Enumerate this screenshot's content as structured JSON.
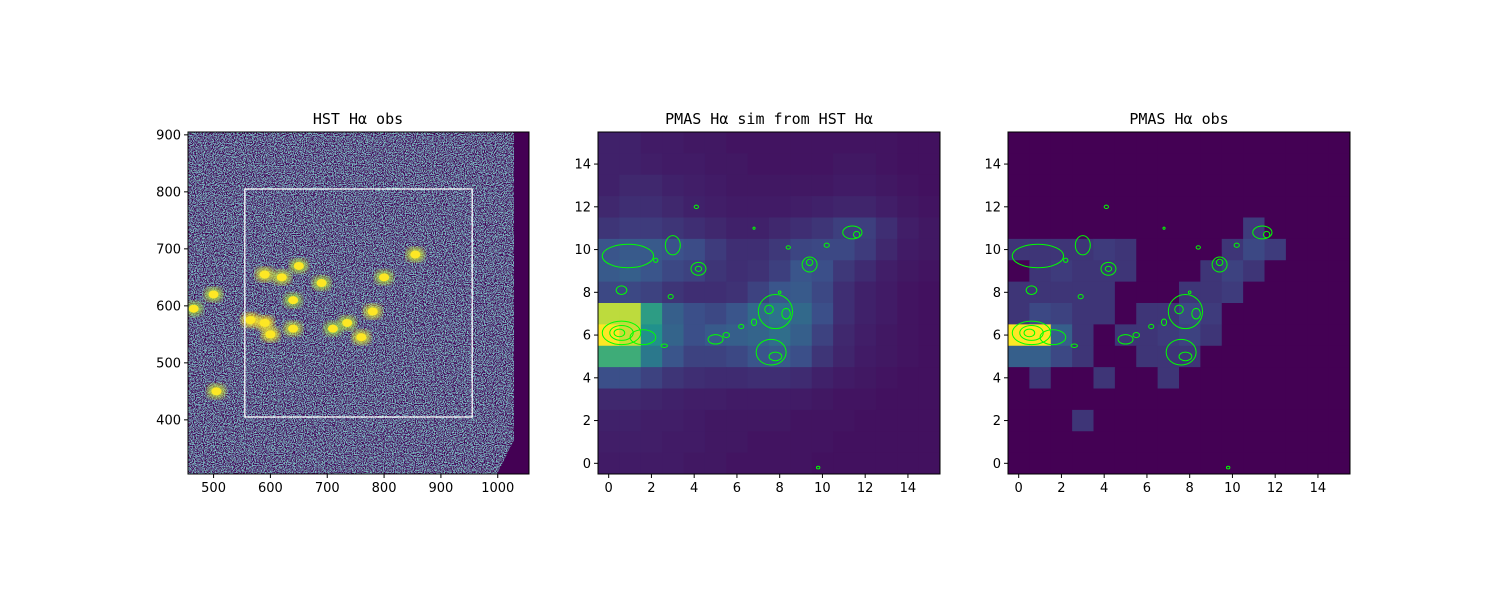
{
  "colors": {
    "viridis_low": "#440154",
    "viridis_mid": "#31688e",
    "viridis_green": "#35b779",
    "viridis_high": "#fde725",
    "contour": "#00ff00",
    "box": "#ffffff"
  },
  "chart_data": [
    {
      "type": "heatmap",
      "title": "HST Hα obs",
      "xlim": [
        455,
        1055
      ],
      "ylim": [
        305,
        905
      ],
      "xticks": [
        500,
        600,
        700,
        800,
        900,
        1000
      ],
      "yticks": [
        400,
        500,
        600,
        700,
        800,
        900
      ],
      "colormap": "viridis",
      "overlay_rectangle": {
        "x": [
          555,
          955
        ],
        "y": [
          405,
          805
        ]
      },
      "bright_regions": [
        {
          "x": 590,
          "y": 570,
          "v": 1.0
        },
        {
          "x": 565,
          "y": 575,
          "v": 1.0
        },
        {
          "x": 600,
          "y": 550,
          "v": 0.9
        },
        {
          "x": 640,
          "y": 560,
          "v": 0.7
        },
        {
          "x": 590,
          "y": 655,
          "v": 0.8
        },
        {
          "x": 620,
          "y": 650,
          "v": 0.7
        },
        {
          "x": 650,
          "y": 670,
          "v": 0.6
        },
        {
          "x": 690,
          "y": 640,
          "v": 0.6
        },
        {
          "x": 640,
          "y": 610,
          "v": 0.5
        },
        {
          "x": 500,
          "y": 620,
          "v": 0.6
        },
        {
          "x": 465,
          "y": 595,
          "v": 0.5
        },
        {
          "x": 505,
          "y": 450,
          "v": 0.7
        },
        {
          "x": 760,
          "y": 545,
          "v": 0.8
        },
        {
          "x": 735,
          "y": 570,
          "v": 0.6
        },
        {
          "x": 780,
          "y": 590,
          "v": 0.8
        },
        {
          "x": 800,
          "y": 650,
          "v": 0.6
        },
        {
          "x": 855,
          "y": 690,
          "v": 0.7
        },
        {
          "x": 710,
          "y": 560,
          "v": 0.5
        }
      ]
    },
    {
      "type": "heatmap",
      "title": "PMAS Hα sim from HST Hα",
      "xlim": [
        -0.5,
        15.5
      ],
      "ylim": [
        -0.5,
        15.5
      ],
      "xticks": [
        0,
        2,
        4,
        6,
        8,
        10,
        12,
        14
      ],
      "yticks": [
        0,
        2,
        4,
        6,
        8,
        10,
        12,
        14
      ],
      "colormap": "viridis",
      "grid_rows_top_to_bottom": [
        [
          0.1,
          0.1,
          0.08,
          0.08,
          0.07,
          0.07,
          0.06,
          0.06,
          0.06,
          0.06,
          0.06,
          0.06,
          0.06,
          0.06,
          0.05,
          0.05
        ],
        [
          0.1,
          0.1,
          0.09,
          0.08,
          0.08,
          0.07,
          0.07,
          0.06,
          0.06,
          0.06,
          0.06,
          0.07,
          0.07,
          0.06,
          0.05,
          0.05
        ],
        [
          0.1,
          0.12,
          0.12,
          0.1,
          0.09,
          0.08,
          0.07,
          0.07,
          0.07,
          0.07,
          0.07,
          0.08,
          0.08,
          0.07,
          0.06,
          0.05
        ],
        [
          0.12,
          0.14,
          0.14,
          0.12,
          0.1,
          0.09,
          0.08,
          0.08,
          0.08,
          0.09,
          0.1,
          0.11,
          0.11,
          0.09,
          0.07,
          0.06
        ],
        [
          0.16,
          0.18,
          0.18,
          0.16,
          0.14,
          0.12,
          0.1,
          0.1,
          0.12,
          0.14,
          0.16,
          0.19,
          0.19,
          0.14,
          0.09,
          0.07
        ],
        [
          0.26,
          0.28,
          0.28,
          0.25,
          0.23,
          0.18,
          0.14,
          0.14,
          0.17,
          0.21,
          0.22,
          0.22,
          0.18,
          0.12,
          0.08,
          0.07
        ],
        [
          0.28,
          0.3,
          0.26,
          0.22,
          0.2,
          0.16,
          0.14,
          0.15,
          0.19,
          0.26,
          0.24,
          0.17,
          0.13,
          0.09,
          0.07,
          0.06
        ],
        [
          0.22,
          0.22,
          0.2,
          0.16,
          0.14,
          0.14,
          0.15,
          0.2,
          0.26,
          0.28,
          0.22,
          0.14,
          0.1,
          0.08,
          0.06,
          0.05
        ],
        [
          0.9,
          0.9,
          0.55,
          0.3,
          0.24,
          0.22,
          0.26,
          0.34,
          0.38,
          0.34,
          0.24,
          0.14,
          0.1,
          0.08,
          0.06,
          0.05
        ],
        [
          1.0,
          0.92,
          0.5,
          0.32,
          0.24,
          0.28,
          0.3,
          0.32,
          0.36,
          0.3,
          0.2,
          0.12,
          0.09,
          0.07,
          0.06,
          0.05
        ],
        [
          0.62,
          0.62,
          0.4,
          0.26,
          0.2,
          0.2,
          0.22,
          0.26,
          0.28,
          0.24,
          0.16,
          0.11,
          0.08,
          0.07,
          0.06,
          0.05
        ],
        [
          0.24,
          0.24,
          0.2,
          0.16,
          0.14,
          0.13,
          0.13,
          0.14,
          0.14,
          0.13,
          0.1,
          0.08,
          0.07,
          0.06,
          0.05,
          0.05
        ],
        [
          0.12,
          0.12,
          0.11,
          0.1,
          0.09,
          0.09,
          0.08,
          0.08,
          0.08,
          0.08,
          0.07,
          0.06,
          0.06,
          0.05,
          0.05,
          0.05
        ],
        [
          0.1,
          0.1,
          0.09,
          0.09,
          0.08,
          0.07,
          0.07,
          0.07,
          0.07,
          0.06,
          0.06,
          0.06,
          0.05,
          0.05,
          0.05,
          0.05
        ],
        [
          0.09,
          0.09,
          0.09,
          0.08,
          0.08,
          0.07,
          0.07,
          0.06,
          0.06,
          0.06,
          0.06,
          0.05,
          0.05,
          0.05,
          0.05,
          0.05
        ],
        [
          0.08,
          0.08,
          0.08,
          0.08,
          0.07,
          0.07,
          0.06,
          0.06,
          0.06,
          0.06,
          0.05,
          0.05,
          0.05,
          0.05,
          0.05,
          0.05
        ]
      ]
    },
    {
      "type": "heatmap",
      "title": "PMAS Hα obs",
      "xlim": [
        -0.5,
        15.5
      ],
      "ylim": [
        -0.5,
        15.5
      ],
      "xticks": [
        0,
        2,
        4,
        6,
        8,
        10,
        12,
        14
      ],
      "yticks": [
        0,
        2,
        4,
        6,
        8,
        10,
        12,
        14
      ],
      "colormap": "viridis",
      "grid_rows_top_to_bottom": [
        [
          0,
          0,
          0,
          0,
          0,
          0,
          0,
          0,
          0,
          0,
          0,
          0,
          0,
          0,
          0,
          0
        ],
        [
          0,
          0,
          0,
          0,
          0,
          0,
          0,
          0,
          0,
          0,
          0,
          0,
          0,
          0,
          0,
          0
        ],
        [
          0,
          0,
          0,
          0,
          0,
          0,
          0,
          0,
          0,
          0,
          0,
          0,
          0,
          0,
          0,
          0
        ],
        [
          0,
          0,
          0,
          0,
          0,
          0,
          0,
          0,
          0,
          0,
          0,
          0,
          0,
          0,
          0,
          0
        ],
        [
          0,
          0,
          0,
          0,
          0,
          0,
          0,
          0,
          0,
          0,
          0,
          0.18,
          0,
          0,
          0,
          0
        ],
        [
          0.16,
          0.16,
          0.16,
          0.16,
          0.18,
          0.16,
          0,
          0,
          0,
          0,
          0.16,
          0.22,
          0.18,
          0,
          0,
          0
        ],
        [
          0,
          0.16,
          0.18,
          0.16,
          0.16,
          0.16,
          0,
          0,
          0,
          0.16,
          0.2,
          0.16,
          0,
          0,
          0,
          0
        ],
        [
          0.16,
          0.16,
          0.16,
          0.16,
          0.16,
          0,
          0,
          0,
          0.16,
          0.16,
          0.18,
          0,
          0,
          0,
          0,
          0
        ],
        [
          0.16,
          0.22,
          0.2,
          0.16,
          0.16,
          0,
          0.16,
          0.16,
          0.22,
          0.18,
          0,
          0,
          0,
          0,
          0,
          0
        ],
        [
          1.0,
          1.0,
          0.3,
          0.16,
          0,
          0.16,
          0.16,
          0.18,
          0.2,
          0.16,
          0,
          0,
          0,
          0,
          0,
          0
        ],
        [
          0.3,
          0.3,
          0.22,
          0.16,
          0,
          0,
          0.16,
          0.16,
          0.16,
          0,
          0,
          0,
          0,
          0,
          0,
          0
        ],
        [
          0,
          0.16,
          0,
          0,
          0.16,
          0,
          0,
          0.16,
          0,
          0,
          0,
          0,
          0,
          0,
          0,
          0
        ],
        [
          0,
          0,
          0,
          0,
          0,
          0,
          0,
          0,
          0,
          0,
          0,
          0,
          0,
          0,
          0,
          0
        ],
        [
          0,
          0,
          0,
          0.16,
          0,
          0,
          0,
          0,
          0,
          0,
          0,
          0,
          0,
          0,
          0,
          0
        ],
        [
          0,
          0,
          0,
          0,
          0,
          0,
          0,
          0,
          0,
          0,
          0,
          0,
          0,
          0,
          0,
          0
        ],
        [
          0,
          0,
          0,
          0,
          0,
          0,
          0,
          0,
          0,
          0,
          0,
          0,
          0,
          0,
          0,
          0
        ]
      ]
    }
  ],
  "contours_pmas_coords": [
    {
      "type": "ring",
      "x": 0.6,
      "y": 6.1,
      "rx": 0.9,
      "ry": 0.55
    },
    {
      "type": "ring",
      "x": 0.6,
      "y": 6.1,
      "rx": 0.55,
      "ry": 0.35
    },
    {
      "type": "ring",
      "x": 0.5,
      "y": 6.1,
      "rx": 0.25,
      "ry": 0.18
    },
    {
      "type": "ring",
      "x": 1.6,
      "y": 5.9,
      "rx": 0.6,
      "ry": 0.35
    },
    {
      "type": "ring",
      "x": 0.9,
      "y": 9.7,
      "rx": 1.2,
      "ry": 0.55
    },
    {
      "type": "ring",
      "x": 0.6,
      "y": 8.1,
      "rx": 0.25,
      "ry": 0.2
    },
    {
      "type": "ring",
      "x": 2.2,
      "y": 9.5,
      "rx": 0.1,
      "ry": 0.1
    },
    {
      "type": "ring",
      "x": 3.0,
      "y": 10.2,
      "rx": 0.35,
      "ry": 0.45
    },
    {
      "type": "ring",
      "x": 4.2,
      "y": 9.1,
      "rx": 0.35,
      "ry": 0.3
    },
    {
      "type": "ring",
      "x": 4.2,
      "y": 9.1,
      "rx": 0.15,
      "ry": 0.12
    },
    {
      "type": "ring",
      "x": 4.1,
      "y": 12.0,
      "rx": 0.1,
      "ry": 0.08
    },
    {
      "type": "ring",
      "x": 2.9,
      "y": 7.8,
      "rx": 0.12,
      "ry": 0.1
    },
    {
      "type": "ring",
      "x": 2.6,
      "y": 5.5,
      "rx": 0.15,
      "ry": 0.08
    },
    {
      "type": "ring",
      "x": 5.0,
      "y": 5.8,
      "rx": 0.35,
      "ry": 0.22
    },
    {
      "type": "ring",
      "x": 5.5,
      "y": 6.0,
      "rx": 0.15,
      "ry": 0.12
    },
    {
      "type": "ring",
      "x": 6.2,
      "y": 6.4,
      "rx": 0.12,
      "ry": 0.1
    },
    {
      "type": "ring",
      "x": 6.8,
      "y": 6.6,
      "rx": 0.12,
      "ry": 0.15
    },
    {
      "type": "ring",
      "x": 7.8,
      "y": 7.1,
      "rx": 0.8,
      "ry": 0.8
    },
    {
      "type": "ring",
      "x": 7.5,
      "y": 7.2,
      "rx": 0.2,
      "ry": 0.2
    },
    {
      "type": "ring",
      "x": 8.3,
      "y": 7.0,
      "rx": 0.2,
      "ry": 0.25
    },
    {
      "type": "ring",
      "x": 7.6,
      "y": 5.2,
      "rx": 0.7,
      "ry": 0.6
    },
    {
      "type": "ring",
      "x": 7.8,
      "y": 5.0,
      "rx": 0.3,
      "ry": 0.2
    },
    {
      "type": "ring",
      "x": 8.0,
      "y": 8.0,
      "rx": 0.06,
      "ry": 0.06
    },
    {
      "type": "ring",
      "x": 8.4,
      "y": 10.1,
      "rx": 0.1,
      "ry": 0.08
    },
    {
      "type": "ring",
      "x": 9.4,
      "y": 9.3,
      "rx": 0.35,
      "ry": 0.35
    },
    {
      "type": "ring",
      "x": 9.4,
      "y": 9.4,
      "rx": 0.15,
      "ry": 0.15
    },
    {
      "type": "ring",
      "x": 10.2,
      "y": 10.2,
      "rx": 0.12,
      "ry": 0.1
    },
    {
      "type": "ring",
      "x": 11.4,
      "y": 10.8,
      "rx": 0.45,
      "ry": 0.3
    },
    {
      "type": "ring",
      "x": 11.6,
      "y": 10.7,
      "rx": 0.15,
      "ry": 0.15
    },
    {
      "type": "ring",
      "x": 6.8,
      "y": 11.0,
      "rx": 0.05,
      "ry": 0.05
    },
    {
      "type": "ring",
      "x": 9.8,
      "y": -0.2,
      "rx": 0.08,
      "ry": 0.06
    }
  ]
}
